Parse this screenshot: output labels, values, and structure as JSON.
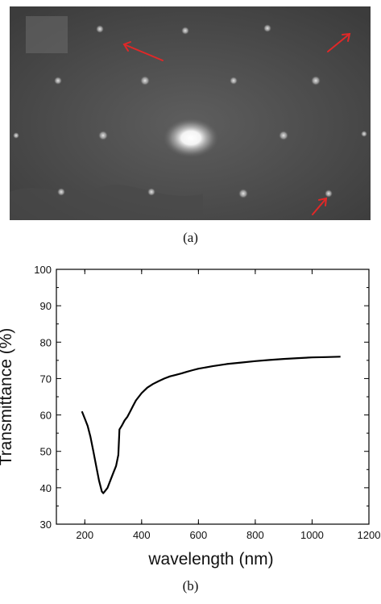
{
  "figure_a": {
    "caption": "(a)",
    "arrow_color": "#e02828"
  },
  "figure_b": {
    "caption": "(b)"
  },
  "chart_data": {
    "type": "line",
    "title": "",
    "xlabel": "wavelength (nm)",
    "ylabel": "Transmittance (%)",
    "xlim": [
      100,
      1200
    ],
    "ylim": [
      30,
      100
    ],
    "x_ticks": [
      200,
      400,
      600,
      800,
      1000,
      1200
    ],
    "y_ticks": [
      30,
      40,
      50,
      60,
      70,
      80,
      90,
      100
    ],
    "grid": false,
    "series": [
      {
        "color": "#000000",
        "x": [
          190,
          200,
          210,
          220,
          230,
          240,
          250,
          260,
          265,
          270,
          280,
          290,
          300,
          310,
          318,
          322,
          330,
          340,
          350,
          360,
          370,
          380,
          400,
          420,
          440,
          460,
          480,
          500,
          520,
          540,
          560,
          580,
          600,
          650,
          700,
          750,
          800,
          850,
          900,
          950,
          1000,
          1050,
          1100
        ],
        "y": [
          61,
          59,
          57,
          54,
          50,
          46,
          42,
          39,
          38.5,
          39,
          40,
          42,
          44,
          46,
          49,
          56,
          57,
          58.5,
          59.5,
          61,
          62.5,
          64,
          66,
          67.5,
          68.5,
          69.3,
          70,
          70.6,
          71,
          71.4,
          71.9,
          72.3,
          72.7,
          73.4,
          74,
          74.4,
          74.8,
          75.1,
          75.4,
          75.6,
          75.8,
          75.9,
          76
        ]
      }
    ]
  }
}
